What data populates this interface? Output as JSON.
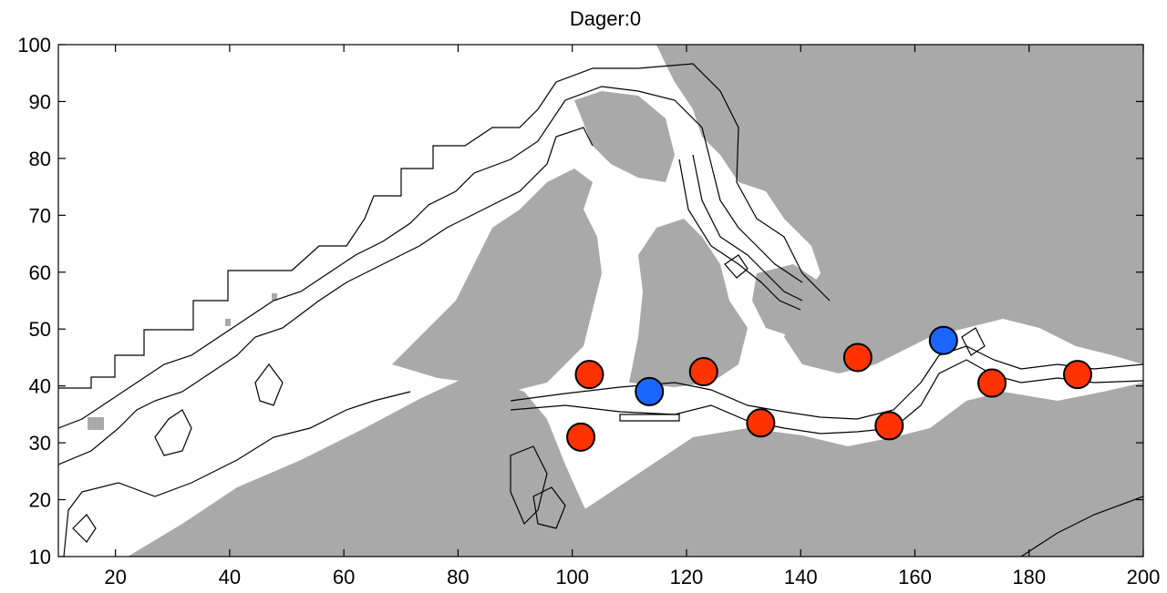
{
  "chart_data": {
    "type": "scatter",
    "title": "Dager:0",
    "xlabel": "",
    "ylabel": "",
    "xlim": [
      10,
      200
    ],
    "ylim": [
      10,
      100
    ],
    "xticks": [
      20,
      40,
      60,
      80,
      100,
      120,
      140,
      160,
      180,
      200
    ],
    "yticks": [
      10,
      20,
      30,
      40,
      50,
      60,
      70,
      80,
      90,
      100
    ],
    "grid": false,
    "series": [
      {
        "color": "#ff3300",
        "points": [
          {
            "x": 103,
            "y": 42
          },
          {
            "x": 101.5,
            "y": 31
          },
          {
            "x": 123,
            "y": 42.5
          },
          {
            "x": 133,
            "y": 33.5
          },
          {
            "x": 150,
            "y": 45
          },
          {
            "x": 155.5,
            "y": 33
          },
          {
            "x": 173.5,
            "y": 40.5
          },
          {
            "x": 188.5,
            "y": 42
          }
        ]
      },
      {
        "color": "#1a66ff",
        "points": [
          {
            "x": 113.5,
            "y": 39
          },
          {
            "x": 165,
            "y": 48
          }
        ]
      }
    ],
    "background": {
      "land_color": "#a9a9a9",
      "water_color": "#ffffff",
      "contour_color": "#000000"
    }
  }
}
